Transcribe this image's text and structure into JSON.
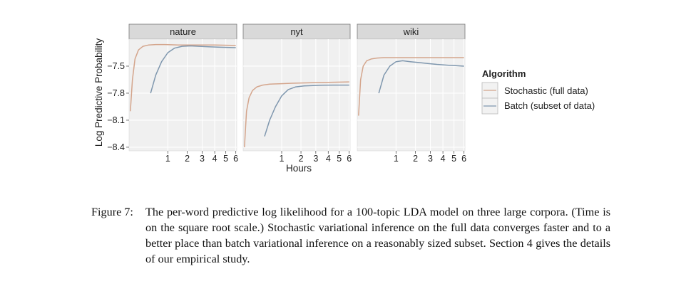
{
  "chart_data": {
    "type": "line",
    "facets": [
      "nature",
      "nyt",
      "wiki"
    ],
    "xlabel": "Hours",
    "ylabel": "Log Predictive Probability",
    "x_scale": "sqrt",
    "x_ticks": [
      1,
      2,
      3,
      4,
      5,
      6
    ],
    "xlim": [
      0.03,
      6.1
    ],
    "y_ticks": [
      -7.5,
      -7.8,
      -8.1,
      -8.4
    ],
    "ylim": [
      -8.44,
      -7.2
    ],
    "grid": true,
    "legend": {
      "title": "Algorithm",
      "position": "right",
      "entries": [
        "Stochastic (full data)",
        "Batch (subset of data)"
      ]
    },
    "series_colors": {
      "stochastic": "#d4a58c",
      "batch": "#7f97ae"
    },
    "panels": [
      {
        "facet": "nature",
        "stochastic": {
          "x": [
            0.04,
            0.06,
            0.09,
            0.14,
            0.22,
            0.35,
            0.55,
            0.9,
            1.5,
            2.5,
            4,
            6
          ],
          "y": [
            -8.0,
            -7.65,
            -7.42,
            -7.32,
            -7.28,
            -7.265,
            -7.26,
            -7.26,
            -7.265,
            -7.265,
            -7.265,
            -7.27
          ]
        },
        "batch": {
          "x": [
            0.4,
            0.55,
            0.75,
            1.0,
            1.3,
            1.7,
            2.2,
            2.8,
            3.5,
            4.5,
            6
          ],
          "y": [
            -7.8,
            -7.6,
            -7.45,
            -7.35,
            -7.3,
            -7.28,
            -7.275,
            -7.28,
            -7.285,
            -7.29,
            -7.295
          ]
        }
      },
      {
        "facet": "nyt",
        "stochastic": {
          "x": [
            0.04,
            0.06,
            0.09,
            0.14,
            0.22,
            0.35,
            0.55,
            0.9,
            1.5,
            2.5,
            4,
            6
          ],
          "y": [
            -8.4,
            -8.0,
            -7.85,
            -7.77,
            -7.73,
            -7.71,
            -7.7,
            -7.695,
            -7.69,
            -7.685,
            -7.68,
            -7.675
          ]
        },
        "batch": {
          "x": [
            0.4,
            0.55,
            0.75,
            1.0,
            1.3,
            1.7,
            2.2,
            2.8,
            3.5,
            4.5,
            6
          ],
          "y": [
            -8.28,
            -8.1,
            -7.95,
            -7.83,
            -7.76,
            -7.73,
            -7.72,
            -7.715,
            -7.712,
            -7.71,
            -7.71
          ]
        }
      },
      {
        "facet": "wiki",
        "stochastic": {
          "x": [
            0.04,
            0.06,
            0.09,
            0.14,
            0.22,
            0.35,
            0.55,
            0.9,
            1.5,
            2.5,
            4,
            6
          ],
          "y": [
            -8.05,
            -7.65,
            -7.5,
            -7.44,
            -7.42,
            -7.41,
            -7.405,
            -7.405,
            -7.405,
            -7.405,
            -7.405,
            -7.405
          ]
        },
        "batch": {
          "x": [
            0.4,
            0.55,
            0.75,
            1.0,
            1.3,
            1.7,
            2.2,
            2.8,
            3.5,
            4.5,
            6
          ],
          "y": [
            -7.8,
            -7.6,
            -7.5,
            -7.45,
            -7.44,
            -7.45,
            -7.46,
            -7.47,
            -7.48,
            -7.49,
            -7.5
          ]
        }
      }
    ]
  },
  "caption": {
    "label": "Figure 7:",
    "text": "The per-word predictive log likelihood for a 100-topic LDA model on three large corpora. (Time is on the square root scale.) Stochastic variational inference on the full data converges faster and to a better place than batch variational inference on a reasonably sized subset. Section 4 gives the details of our empirical study."
  }
}
